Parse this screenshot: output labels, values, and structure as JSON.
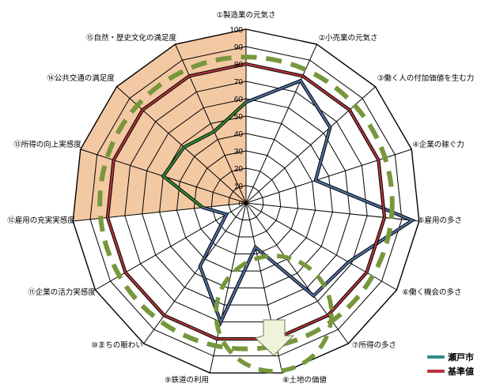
{
  "chart_data": {
    "type": "radar",
    "axes": [
      "①製造業の元気さ",
      "②小売業の元気さ",
      "③働く人の付加価値を生む力",
      "④企業の稼ぐ力",
      "⑤雇用の多さ",
      "⑥働く機会の多さ",
      "⑦所得の多さ",
      "⑧土地の価値",
      "⑨鉄道の利用",
      "⑩まちの賑わい",
      "⑪企業の活力実感度",
      "⑫雇用の充実実感度",
      "⑬所得の向上実感度",
      "⑭公共交通の満足度",
      "⑮自然・歴史文化の満足度"
    ],
    "ticks": [
      "0",
      "10",
      "20",
      "30",
      "40",
      "50",
      "60",
      "70",
      "80",
      "90",
      "100"
    ],
    "rlim": [
      0,
      100
    ],
    "grid": true,
    "series": [
      {
        "name": "瀬戸市",
        "color": "#4f6fa3",
        "values": [
          58,
          77,
          65,
          42,
          96,
          68,
          66,
          26,
          70,
          45,
          13,
          25,
          50,
          48,
          45
        ]
      },
      {
        "name": "基準値",
        "color": "#b5353a",
        "values": [
          80,
          80,
          80,
          80,
          80,
          80,
          80,
          80,
          80,
          80,
          80,
          80,
          80,
          80,
          80
        ]
      }
    ],
    "annotations": {
      "green_dashed_ring_value": 84,
      "green_dashed_small_circle": true,
      "shaded_sector_axes": [
        "⑫雇用の充実実感度",
        "⑬所得の向上実感度",
        "⑭公共交通の満足度",
        "⑮自然・歴史文化の満足度"
      ],
      "shaded_color": "#f3c9a4",
      "dashed_color": "#77973c",
      "arrow_color": "#eef3dc"
    }
  },
  "legend": {
    "seto": "瀬戸市",
    "base": "基準値"
  }
}
